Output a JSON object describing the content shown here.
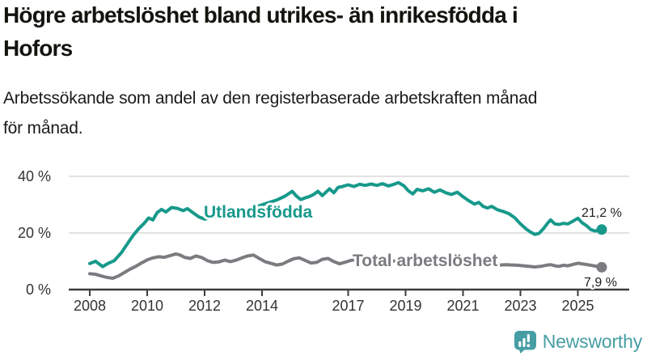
{
  "header": {
    "title": "Högre arbetslöshet bland utrikes- än inrikesfödda i\nHofors",
    "subtitle": "Arbetssökande som andel av den registerbaserade arbetskraften månad\nför månad."
  },
  "branding": {
    "name": "Newsworthy",
    "color": "#469ea4"
  },
  "chart_data": {
    "type": "line",
    "title": "Högre arbetslöshet bland utrikes- än inrikesfödda i Hofors",
    "subtitle": "Arbetssökande som andel av den registerbaserade arbetskraften månad för månad.",
    "unit": "%",
    "grid": true,
    "x_axis": {
      "range": [
        2007.3,
        2026.8
      ],
      "ticks": [
        2008,
        2010,
        2012,
        2014,
        2017,
        2019,
        2021,
        2023,
        2025
      ],
      "tick_labels": [
        "2008",
        "2010",
        "2012",
        "2014",
        "2017",
        "2019",
        "2021",
        "2023",
        "2025"
      ]
    },
    "y_axis": {
      "range": [
        0,
        42
      ],
      "ticks": [
        0,
        20,
        40
      ],
      "tick_labels": [
        "0 %",
        "20 %",
        "40 %"
      ]
    },
    "colors": {
      "axis": "#3d3d3d",
      "gridline": "#d9d9d9",
      "tick_text": "#333333"
    },
    "series": [
      {
        "name": "Utlandsfödda",
        "color": "#17998b",
        "end_value": 21.2,
        "end_label": "21,2 %",
        "points": [
          [
            2008.0,
            9.2
          ],
          [
            2008.2,
            10.0
          ],
          [
            2008.45,
            8.1
          ],
          [
            2008.65,
            9.3
          ],
          [
            2008.85,
            10.2
          ],
          [
            2009.1,
            13.0
          ],
          [
            2009.3,
            16.0
          ],
          [
            2009.5,
            19.0
          ],
          [
            2009.7,
            21.5
          ],
          [
            2009.9,
            23.5
          ],
          [
            2010.05,
            25.3
          ],
          [
            2010.2,
            24.6
          ],
          [
            2010.35,
            27.2
          ],
          [
            2010.5,
            28.3
          ],
          [
            2010.65,
            27.4
          ],
          [
            2010.85,
            29.0
          ],
          [
            2011.05,
            28.7
          ],
          [
            2011.25,
            27.9
          ],
          [
            2011.4,
            28.6
          ],
          [
            2011.6,
            27.1
          ],
          [
            2011.8,
            25.7
          ],
          [
            2012.0,
            24.9
          ],
          [
            2012.2,
            25.4
          ],
          [
            2012.45,
            25.8
          ],
          [
            2012.7,
            26.4
          ],
          [
            2013.0,
            27.2
          ],
          [
            2013.3,
            28.0
          ],
          [
            2013.6,
            28.8
          ],
          [
            2013.9,
            29.6
          ],
          [
            2014.2,
            30.6
          ],
          [
            2014.5,
            31.6
          ],
          [
            2014.8,
            33.0
          ],
          [
            2015.05,
            34.7
          ],
          [
            2015.2,
            33.0
          ],
          [
            2015.35,
            31.8
          ],
          [
            2015.5,
            32.4
          ],
          [
            2015.65,
            32.9
          ],
          [
            2015.8,
            33.6
          ],
          [
            2015.95,
            34.7
          ],
          [
            2016.1,
            33.2
          ],
          [
            2016.35,
            35.6
          ],
          [
            2016.5,
            34.2
          ],
          [
            2016.65,
            36.1
          ],
          [
            2016.8,
            36.4
          ],
          [
            2017.0,
            37.0
          ],
          [
            2017.2,
            36.4
          ],
          [
            2017.4,
            37.2
          ],
          [
            2017.6,
            36.8
          ],
          [
            2017.8,
            37.3
          ],
          [
            2018.0,
            36.8
          ],
          [
            2018.2,
            37.4
          ],
          [
            2018.4,
            36.6
          ],
          [
            2018.6,
            37.2
          ],
          [
            2018.75,
            37.8
          ],
          [
            2018.95,
            36.6
          ],
          [
            2019.1,
            34.9
          ],
          [
            2019.25,
            33.8
          ],
          [
            2019.4,
            35.4
          ],
          [
            2019.6,
            34.9
          ],
          [
            2019.8,
            35.6
          ],
          [
            2020.0,
            34.4
          ],
          [
            2020.2,
            35.2
          ],
          [
            2020.4,
            34.2
          ],
          [
            2020.6,
            33.6
          ],
          [
            2020.8,
            34.4
          ],
          [
            2021.0,
            32.8
          ],
          [
            2021.2,
            31.4
          ],
          [
            2021.4,
            30.2
          ],
          [
            2021.55,
            30.8
          ],
          [
            2021.7,
            29.4
          ],
          [
            2021.85,
            28.8
          ],
          [
            2022.0,
            29.4
          ],
          [
            2022.2,
            28.2
          ],
          [
            2022.4,
            27.6
          ],
          [
            2022.6,
            26.8
          ],
          [
            2022.8,
            25.4
          ],
          [
            2023.0,
            23.2
          ],
          [
            2023.2,
            21.4
          ],
          [
            2023.35,
            20.3
          ],
          [
            2023.5,
            19.5
          ],
          [
            2023.65,
            19.9
          ],
          [
            2023.8,
            21.5
          ],
          [
            2023.95,
            23.5
          ],
          [
            2024.05,
            24.6
          ],
          [
            2024.2,
            23.2
          ],
          [
            2024.35,
            23.0
          ],
          [
            2024.5,
            23.4
          ],
          [
            2024.65,
            23.2
          ],
          [
            2024.8,
            24.0
          ],
          [
            2025.0,
            25.2
          ],
          [
            2025.15,
            23.6
          ],
          [
            2025.3,
            22.6
          ],
          [
            2025.45,
            21.2
          ],
          [
            2025.6,
            20.7
          ],
          [
            2025.83,
            21.2
          ]
        ]
      },
      {
        "name": "Total arbetslöshet",
        "color": "#7b7b80",
        "end_value": 7.9,
        "end_label": "7,9 %",
        "points": [
          [
            2008.0,
            5.6
          ],
          [
            2008.2,
            5.4
          ],
          [
            2008.4,
            4.8
          ],
          [
            2008.6,
            4.3
          ],
          [
            2008.8,
            4.0
          ],
          [
            2009.0,
            4.8
          ],
          [
            2009.2,
            6.0
          ],
          [
            2009.4,
            7.2
          ],
          [
            2009.6,
            8.2
          ],
          [
            2009.8,
            9.4
          ],
          [
            2010.0,
            10.5
          ],
          [
            2010.2,
            11.2
          ],
          [
            2010.4,
            11.6
          ],
          [
            2010.6,
            11.4
          ],
          [
            2010.8,
            12.0
          ],
          [
            2011.0,
            12.6
          ],
          [
            2011.15,
            12.2
          ],
          [
            2011.3,
            11.4
          ],
          [
            2011.5,
            11.0
          ],
          [
            2011.7,
            11.9
          ],
          [
            2011.9,
            11.3
          ],
          [
            2012.1,
            10.2
          ],
          [
            2012.3,
            9.6
          ],
          [
            2012.5,
            9.8
          ],
          [
            2012.7,
            10.4
          ],
          [
            2012.9,
            9.9
          ],
          [
            2013.1,
            10.4
          ],
          [
            2013.3,
            11.2
          ],
          [
            2013.5,
            11.9
          ],
          [
            2013.7,
            12.2
          ],
          [
            2013.9,
            11.0
          ],
          [
            2014.1,
            9.9
          ],
          [
            2014.3,
            9.3
          ],
          [
            2014.5,
            8.7
          ],
          [
            2014.7,
            9.0
          ],
          [
            2014.9,
            10.0
          ],
          [
            2015.1,
            10.9
          ],
          [
            2015.3,
            11.2
          ],
          [
            2015.5,
            10.3
          ],
          [
            2015.7,
            9.4
          ],
          [
            2015.9,
            9.6
          ],
          [
            2016.1,
            10.7
          ],
          [
            2016.3,
            11.0
          ],
          [
            2016.5,
            9.9
          ],
          [
            2016.7,
            9.1
          ],
          [
            2016.9,
            9.7
          ],
          [
            2017.1,
            10.3
          ],
          [
            2017.3,
            10.6
          ],
          [
            2017.5,
            10.2
          ],
          [
            2017.7,
            9.8
          ],
          [
            2017.9,
            10.0
          ],
          [
            2018.1,
            10.4
          ],
          [
            2018.3,
            10.8
          ],
          [
            2018.5,
            10.3
          ],
          [
            2018.7,
            9.9
          ],
          [
            2018.9,
            9.7
          ],
          [
            2019.1,
            9.4
          ],
          [
            2019.3,
            9.6
          ],
          [
            2019.5,
            9.5
          ],
          [
            2019.7,
            9.3
          ],
          [
            2019.9,
            9.2
          ],
          [
            2020.1,
            10.2
          ],
          [
            2020.3,
            10.0
          ],
          [
            2020.5,
            9.7
          ],
          [
            2020.7,
            9.6
          ],
          [
            2020.9,
            9.5
          ],
          [
            2021.1,
            9.3
          ],
          [
            2021.3,
            9.0
          ],
          [
            2021.5,
            9.1
          ],
          [
            2021.7,
            9.0
          ],
          [
            2021.9,
            8.9
          ],
          [
            2022.1,
            8.8
          ],
          [
            2022.3,
            8.7
          ],
          [
            2022.5,
            8.8
          ],
          [
            2022.7,
            8.7
          ],
          [
            2022.9,
            8.6
          ],
          [
            2023.1,
            8.4
          ],
          [
            2023.3,
            8.2
          ],
          [
            2023.5,
            8.0
          ],
          [
            2023.7,
            8.2
          ],
          [
            2023.9,
            8.6
          ],
          [
            2024.05,
            8.8
          ],
          [
            2024.2,
            8.4
          ],
          [
            2024.35,
            8.2
          ],
          [
            2024.5,
            8.6
          ],
          [
            2024.65,
            8.4
          ],
          [
            2024.8,
            8.8
          ],
          [
            2025.0,
            9.3
          ],
          [
            2025.2,
            9.0
          ],
          [
            2025.4,
            8.7
          ],
          [
            2025.6,
            8.3
          ],
          [
            2025.83,
            7.9
          ]
        ]
      }
    ]
  }
}
